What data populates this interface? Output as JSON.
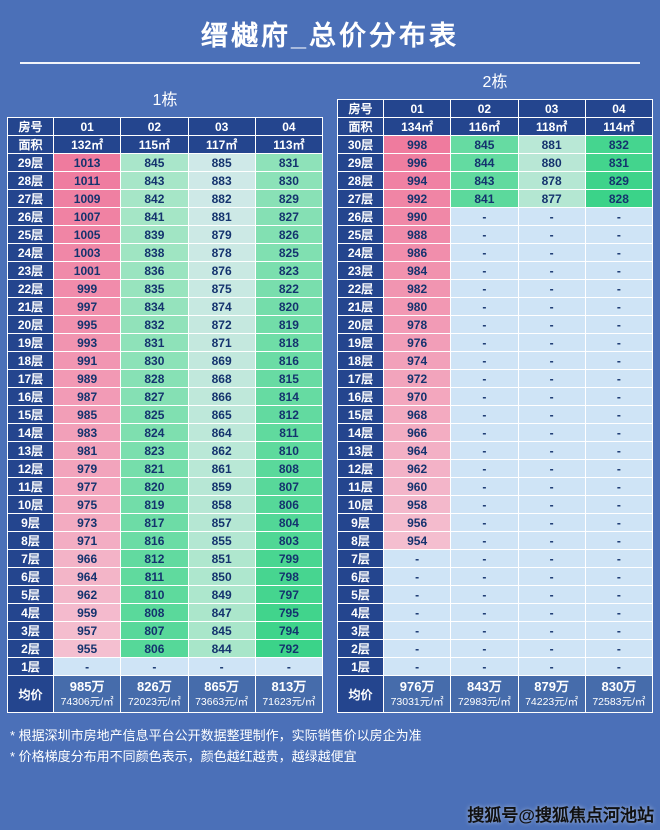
{
  "page": {
    "title": "缙樾府_总价分布表",
    "notes": [
      "* 根据深圳市房地产信息平台公开数据整理制作，实际销售价以房企为准",
      "* 价格梯度分布用不同颜色表示，颜色越红越贵，越绿越便宜"
    ],
    "watermark": "搜狐号@搜狐焦点河池站"
  },
  "colors": {
    "background": "#4b70b8",
    "header_cell": "#24458e",
    "avg_value_cell": "#466cab",
    "empty_cell": "#cfe4f6",
    "cell_text": "#14336e",
    "scale_stops": [
      [
        0.0,
        "#3bd389"
      ],
      [
        0.1,
        "#66dba2"
      ],
      [
        0.22,
        "#a5e6c6"
      ],
      [
        0.4,
        "#cde9e6"
      ],
      [
        0.55,
        "#dde6f2"
      ],
      [
        0.72,
        "#f4c3d3"
      ],
      [
        0.88,
        "#f29cb6"
      ],
      [
        1.0,
        "#ef7b9e"
      ]
    ]
  },
  "chart_data": [
    {
      "type": "table",
      "title": "1栋",
      "row_header": "房号",
      "area_header": "面积",
      "avg_header": "均价",
      "units": [
        "01",
        "02",
        "03",
        "04"
      ],
      "areas": [
        "132㎡",
        "115㎡",
        "117㎡",
        "113㎡"
      ],
      "floors": [
        "29层",
        "28层",
        "27层",
        "26层",
        "25层",
        "24层",
        "23层",
        "22层",
        "21层",
        "20层",
        "19层",
        "18层",
        "17层",
        "16层",
        "15层",
        "14层",
        "13层",
        "12层",
        "11层",
        "10层",
        "9层",
        "8层",
        "7层",
        "6层",
        "5层",
        "4层",
        "3层",
        "2层",
        "1层"
      ],
      "prices": [
        [
          1013,
          845,
          885,
          831
        ],
        [
          1011,
          843,
          883,
          830
        ],
        [
          1009,
          842,
          882,
          829
        ],
        [
          1007,
          841,
          881,
          827
        ],
        [
          1005,
          839,
          879,
          826
        ],
        [
          1003,
          838,
          878,
          825
        ],
        [
          1001,
          836,
          876,
          823
        ],
        [
          999,
          835,
          875,
          822
        ],
        [
          997,
          834,
          874,
          820
        ],
        [
          995,
          832,
          872,
          819
        ],
        [
          993,
          831,
          871,
          818
        ],
        [
          991,
          830,
          869,
          816
        ],
        [
          989,
          828,
          868,
          815
        ],
        [
          987,
          827,
          866,
          814
        ],
        [
          985,
          825,
          865,
          812
        ],
        [
          983,
          824,
          864,
          811
        ],
        [
          981,
          823,
          862,
          810
        ],
        [
          979,
          821,
          861,
          808
        ],
        [
          977,
          820,
          859,
          807
        ],
        [
          975,
          819,
          858,
          806
        ],
        [
          973,
          817,
          857,
          804
        ],
        [
          971,
          816,
          855,
          803
        ],
        [
          966,
          812,
          851,
          799
        ],
        [
          964,
          811,
          850,
          798
        ],
        [
          962,
          810,
          849,
          797
        ],
        [
          959,
          808,
          847,
          795
        ],
        [
          957,
          807,
          845,
          794
        ],
        [
          955,
          806,
          844,
          792
        ],
        [
          "-",
          "-",
          "-",
          "-"
        ]
      ],
      "avg_prices": [
        "985万",
        "826万",
        "865万",
        "813万"
      ],
      "avg_unit_prices": [
        "74306元/㎡",
        "72023元/㎡",
        "73663元/㎡",
        "71623元/㎡"
      ]
    },
    {
      "type": "table",
      "title": "2栋",
      "row_header": "房号",
      "area_header": "面积",
      "avg_header": "均价",
      "units": [
        "01",
        "02",
        "03",
        "04"
      ],
      "areas": [
        "134㎡",
        "116㎡",
        "118㎡",
        "114㎡"
      ],
      "floors": [
        "30层",
        "29层",
        "28层",
        "27层",
        "26层",
        "25层",
        "24层",
        "23层",
        "22层",
        "21层",
        "20层",
        "19层",
        "18层",
        "17层",
        "16层",
        "15层",
        "14层",
        "13层",
        "12层",
        "11层",
        "10层",
        "9层",
        "8层",
        "7层",
        "6层",
        "5层",
        "4层",
        "3层",
        "2层",
        "1层"
      ],
      "prices": [
        [
          998,
          845,
          881,
          832
        ],
        [
          996,
          844,
          880,
          831
        ],
        [
          994,
          843,
          878,
          829
        ],
        [
          992,
          841,
          877,
          828
        ],
        [
          990,
          "-",
          "-",
          "-"
        ],
        [
          988,
          "-",
          "-",
          "-"
        ],
        [
          986,
          "-",
          "-",
          "-"
        ],
        [
          984,
          "-",
          "-",
          "-"
        ],
        [
          982,
          "-",
          "-",
          "-"
        ],
        [
          980,
          "-",
          "-",
          "-"
        ],
        [
          978,
          "-",
          "-",
          "-"
        ],
        [
          976,
          "-",
          "-",
          "-"
        ],
        [
          974,
          "-",
          "-",
          "-"
        ],
        [
          972,
          "-",
          "-",
          "-"
        ],
        [
          970,
          "-",
          "-",
          "-"
        ],
        [
          968,
          "-",
          "-",
          "-"
        ],
        [
          966,
          "-",
          "-",
          "-"
        ],
        [
          964,
          "-",
          "-",
          "-"
        ],
        [
          962,
          "-",
          "-",
          "-"
        ],
        [
          960,
          "-",
          "-",
          "-"
        ],
        [
          958,
          "-",
          "-",
          "-"
        ],
        [
          956,
          "-",
          "-",
          "-"
        ],
        [
          954,
          "-",
          "-",
          "-"
        ],
        [
          "-",
          "-",
          "-",
          "-"
        ],
        [
          "-",
          "-",
          "-",
          "-"
        ],
        [
          "-",
          "-",
          "-",
          "-"
        ],
        [
          "-",
          "-",
          "-",
          "-"
        ],
        [
          "-",
          "-",
          "-",
          "-"
        ],
        [
          "-",
          "-",
          "-",
          "-"
        ],
        [
          "-",
          "-",
          "-",
          "-"
        ]
      ],
      "avg_prices": [
        "976万",
        "843万",
        "879万",
        "830万"
      ],
      "avg_unit_prices": [
        "73031元/㎡",
        "72983元/㎡",
        "74223元/㎡",
        "72583元/㎡"
      ]
    }
  ]
}
